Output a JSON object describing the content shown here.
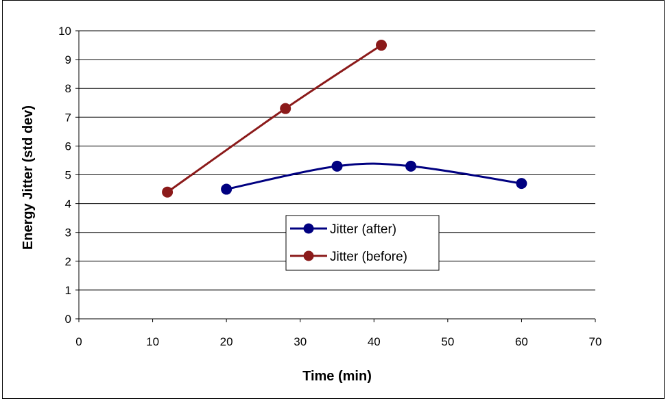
{
  "chart_data": {
    "type": "line",
    "xlabel": "Time (min)",
    "ylabel": "Energy Jitter (std dev)",
    "xlim": [
      0,
      70
    ],
    "ylim": [
      0,
      10
    ],
    "x_ticks": [
      0,
      10,
      20,
      30,
      40,
      50,
      60,
      70
    ],
    "y_ticks": [
      0,
      1,
      2,
      3,
      4,
      5,
      6,
      7,
      8,
      9,
      10
    ],
    "grid": "horizontal",
    "legend_position": "center-right",
    "series": [
      {
        "name": "Jitter (after)",
        "color": "#000080",
        "x": [
          20,
          35,
          45,
          60
        ],
        "y": [
          4.5,
          5.3,
          5.3,
          4.7
        ]
      },
      {
        "name": "Jitter (before)",
        "color": "#8B1A1A",
        "x": [
          12,
          28,
          41
        ],
        "y": [
          4.4,
          7.3,
          9.5
        ]
      }
    ]
  }
}
